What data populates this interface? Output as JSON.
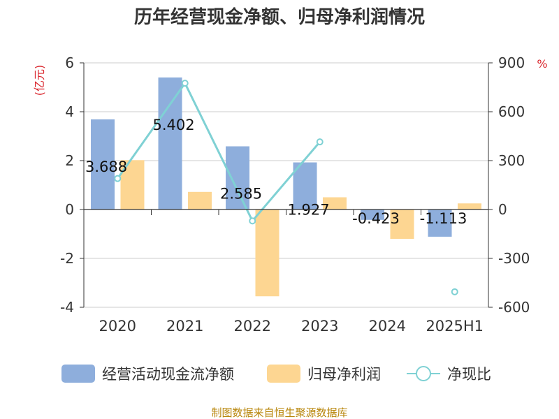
{
  "chart_data": {
    "type": "bar",
    "title": "历年经营现金净额、归母净利润情况",
    "categories": [
      "2020",
      "2021",
      "2022",
      "2023",
      "2024",
      "2025H1"
    ],
    "y_left": {
      "unit": "(亿元)",
      "ylim": [
        -4,
        6
      ],
      "ticks": [
        "6",
        "4",
        "2",
        "0",
        "-2",
        "-4"
      ]
    },
    "y_right": {
      "unit": "%",
      "ylim": [
        -600,
        900
      ],
      "ticks": [
        "900",
        "600",
        "300",
        "0",
        "-300",
        "-600"
      ]
    },
    "series": [
      {
        "name": "经营活动现金流净额",
        "type": "bar",
        "axis": "left",
        "color": "#8eaedc",
        "values": [
          3.688,
          5.402,
          2.585,
          1.927,
          -0.423,
          -1.113
        ],
        "labels": [
          "3.688",
          "5.402",
          "2.585",
          "1.927",
          "-0.423",
          "-1.113"
        ]
      },
      {
        "name": "归母净利润",
        "type": "bar",
        "axis": "left",
        "color": "#fdd692",
        "values": [
          2.02,
          0.72,
          -3.55,
          0.5,
          -1.2,
          0.25
        ]
      },
      {
        "name": "净现比",
        "type": "line",
        "axis": "right",
        "color": "#7fd1d4",
        "values": [
          190,
          775,
          -70,
          415,
          null,
          -505
        ]
      }
    ],
    "grid": true,
    "legend": "bottom"
  },
  "source": "制图数据来自恒生聚源数据库"
}
